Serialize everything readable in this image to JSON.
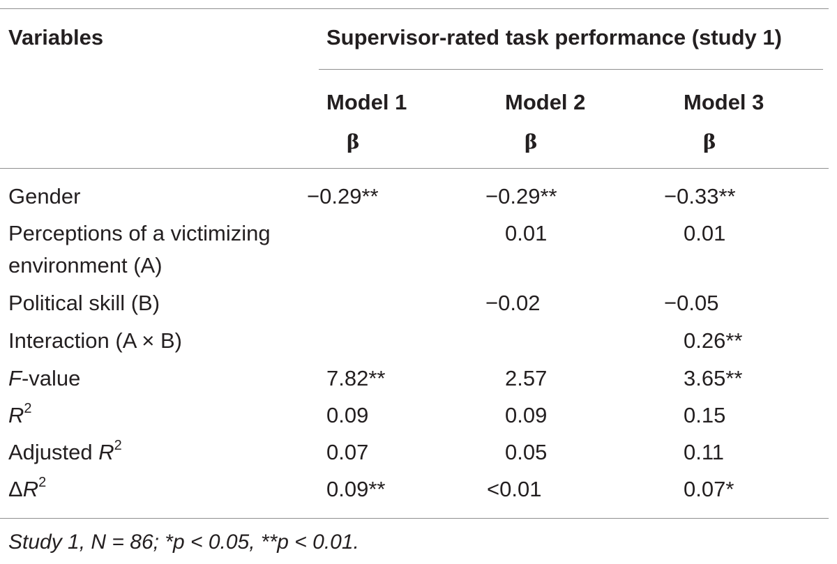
{
  "header": {
    "variables_label": "Variables",
    "dependent_title": "Supervisor-rated task performance (study 1)",
    "models": [
      "Model 1",
      "Model 2",
      "Model 3"
    ],
    "coef_symbol": "β"
  },
  "rows": {
    "gender": {
      "label": "Gender",
      "m1": "−0.29**",
      "m2": "−0.29**",
      "m3": "−0.33**"
    },
    "perceptions": {
      "label_line1": "Perceptions of a victimizing",
      "label_line2": "environment (A)",
      "m1": "",
      "m2": "0.01",
      "m3": "0.01"
    },
    "political": {
      "label": "Political skill (B)",
      "m1": "",
      "m2": "−0.02",
      "m3": "−0.05"
    },
    "interaction": {
      "label": "Interaction (A × B)",
      "m1": "",
      "m2": "",
      "m3": "0.26**"
    },
    "fvalue": {
      "label_italic": "F",
      "label_rest": "-value",
      "m1": "7.82**",
      "m2": "2.57",
      "m3": "3.65**"
    },
    "r2": {
      "label_italic": "R",
      "label_sup": "2",
      "m1": "0.09",
      "m2": "0.09",
      "m3": "0.15"
    },
    "adj_r2": {
      "label_prefix": "Adjusted ",
      "label_italic": "R",
      "label_sup": "2",
      "m1": "0.07",
      "m2": "0.05",
      "m3": "0.11"
    },
    "delta_r2": {
      "label_prefix": "Δ",
      "label_italic": "R",
      "label_sup": "2",
      "m1": "0.09**",
      "m2": "<0.01",
      "m3": "0.07*"
    }
  },
  "footnote": "Study 1, N = 86; *p < 0.05, **p < 0.01."
}
